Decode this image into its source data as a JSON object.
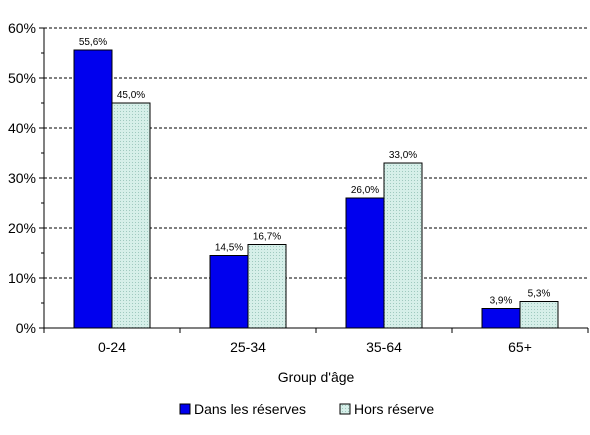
{
  "chart_data": {
    "type": "bar",
    "categories": [
      "0-24",
      "25-34",
      "35-64",
      "65+"
    ],
    "series": [
      {
        "name": "Dans les réserves",
        "values": [
          55.6,
          14.5,
          26.0,
          3.9
        ],
        "labels": [
          "55,6%",
          "14,5%",
          "26,0%",
          "3,9%"
        ],
        "color": "#0000ee"
      },
      {
        "name": "Hors réserve",
        "values": [
          45.0,
          16.7,
          33.0,
          5.3
        ],
        "labels": [
          "45,0%",
          "16,7%",
          "33,0%",
          "5,3%"
        ],
        "color": "#cce8e0"
      }
    ],
    "y_ticks": [
      0,
      10,
      20,
      30,
      40,
      50,
      60
    ],
    "y_tick_labels": [
      "0%",
      "10%",
      "20%",
      "30%",
      "40%",
      "50%",
      "60%"
    ],
    "ylim": [
      0,
      60
    ],
    "xlabel": "Group d'âge",
    "ylabel": "",
    "grid": true,
    "legend_position": "bottom"
  }
}
